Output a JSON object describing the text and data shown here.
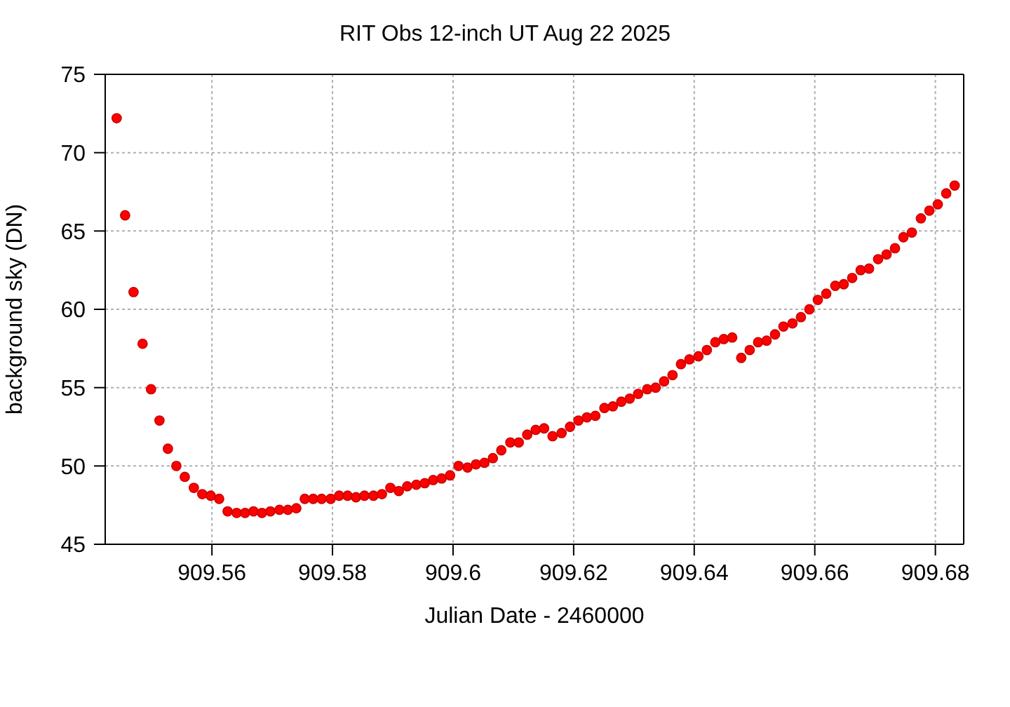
{
  "chart_data": {
    "type": "scatter",
    "title": "RIT Obs 12-inch UT Aug 22 2025",
    "xlabel": "Julian Date - 2460000",
    "ylabel": "background sky (DN)",
    "x": [
      909.5442,
      909.5456,
      909.547,
      909.5485,
      909.5499,
      909.5513,
      909.5527,
      909.5541,
      909.5555,
      909.557,
      909.5584,
      909.5598,
      909.5612,
      909.5626,
      909.5641,
      909.5655,
      909.5669,
      909.5683,
      909.5697,
      909.5712,
      909.5726,
      909.574,
      909.5754,
      909.5768,
      909.5782,
      909.5797,
      909.5811,
      909.5825,
      909.5839,
      909.5853,
      909.5868,
      909.5882,
      909.5896,
      909.591,
      909.5924,
      909.5939,
      909.5953,
      909.5967,
      909.5981,
      909.5995,
      909.6009,
      909.6024,
      909.6038,
      909.6052,
      909.6066,
      909.608,
      909.6095,
      909.6109,
      909.6123,
      909.6137,
      909.6151,
      909.6165,
      909.618,
      909.6194,
      909.6208,
      909.6222,
      909.6236,
      909.6251,
      909.6265,
      909.6279,
      909.6293,
      909.6307,
      909.6322,
      909.6336,
      909.635,
      909.6364,
      909.6378,
      909.6392,
      909.6407,
      909.6421,
      909.6435,
      909.6449,
      909.6463,
      909.6478,
      909.6492,
      909.6506,
      909.652,
      909.6534,
      909.6548,
      909.6563,
      909.6577,
      909.6591,
      909.6605,
      909.6619,
      909.6634,
      909.6648,
      909.6662,
      909.6676,
      909.669,
      909.6705,
      909.6719,
      909.6733,
      909.6747,
      909.6761,
      909.6776,
      909.679,
      909.6804,
      909.6818,
      909.6832
    ],
    "series": [
      {
        "color": "#ff0000",
        "values": [
          72.2,
          66.0,
          61.1,
          57.8,
          54.9,
          52.9,
          51.1,
          50.0,
          49.3,
          48.6,
          48.2,
          48.1,
          47.9,
          47.1,
          47.0,
          47.0,
          47.1,
          47.0,
          47.1,
          47.2,
          47.2,
          47.3,
          47.9,
          47.9,
          47.9,
          47.9,
          48.1,
          48.1,
          48.0,
          48.1,
          48.1,
          48.2,
          48.6,
          48.4,
          48.7,
          48.8,
          48.9,
          49.1,
          49.2,
          49.4,
          50.0,
          49.9,
          50.1,
          50.2,
          50.5,
          51.0,
          51.5,
          51.5,
          52.0,
          52.3,
          52.4,
          51.9,
          52.1,
          52.5,
          52.9,
          53.1,
          53.2,
          53.7,
          53.8,
          54.1,
          54.3,
          54.6,
          54.9,
          55.0,
          55.4,
          55.8,
          56.5,
          56.8,
          57.0,
          57.4,
          57.9,
          58.1,
          58.2,
          56.9,
          57.4,
          57.9,
          58.0,
          58.4,
          58.9,
          59.1,
          59.5,
          60.0,
          60.6,
          61.0,
          61.5,
          61.6,
          62.0,
          62.5,
          62.6,
          63.2,
          63.5,
          63.9,
          64.6,
          64.9,
          65.8,
          66.3,
          66.7,
          67.4,
          67.9
        ]
      }
    ],
    "xlim": [
      909.5423,
      909.6847
    ],
    "xticks": [
      909.56,
      909.58,
      909.6,
      909.62,
      909.64,
      909.66,
      909.68
    ],
    "ylim": [
      45,
      75
    ],
    "yticks": [
      45,
      50,
      55,
      60,
      65,
      70,
      75
    ],
    "grid": true,
    "marker": "circle"
  }
}
